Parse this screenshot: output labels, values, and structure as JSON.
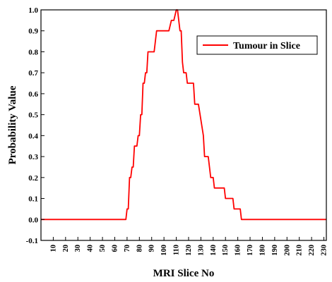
{
  "chart_data": {
    "type": "line",
    "xlabel": "MRI Slice No",
    "ylabel": "Probability Value",
    "xlim": [
      0,
      232
    ],
    "ylim": [
      -0.1,
      1.0
    ],
    "x_ticks": [
      10,
      20,
      30,
      40,
      50,
      60,
      70,
      80,
      90,
      100,
      110,
      120,
      130,
      140,
      150,
      160,
      170,
      180,
      190,
      200,
      210,
      220,
      230
    ],
    "y_ticks": [
      -0.1,
      0.0,
      0.1,
      0.2,
      0.3,
      0.4,
      0.5,
      0.6,
      0.7,
      0.8,
      0.9,
      1.0
    ],
    "y_tick_labels": [
      "-0.1",
      "0.0",
      "0.1",
      "0.2",
      "0.3",
      "0.4",
      "0.5",
      "0.6",
      "0.7",
      "0.8",
      "0.9",
      "1.0"
    ],
    "grid": false,
    "legend_position": "top-right",
    "series": [
      {
        "name": "Tumour in Slice",
        "color": "#ff0000",
        "points": [
          [
            0,
            0.0
          ],
          [
            69,
            0.0
          ],
          [
            70,
            0.05
          ],
          [
            71,
            0.05
          ],
          [
            72,
            0.2
          ],
          [
            73,
            0.2
          ],
          [
            74,
            0.25
          ],
          [
            75,
            0.25
          ],
          [
            76,
            0.35
          ],
          [
            78,
            0.35
          ],
          [
            79,
            0.4
          ],
          [
            80,
            0.4
          ],
          [
            81,
            0.5
          ],
          [
            82,
            0.5
          ],
          [
            83,
            0.65
          ],
          [
            84,
            0.65
          ],
          [
            85,
            0.7
          ],
          [
            86,
            0.7
          ],
          [
            87,
            0.8
          ],
          [
            92,
            0.8
          ],
          [
            94,
            0.9
          ],
          [
            104,
            0.9
          ],
          [
            106,
            0.95
          ],
          [
            108,
            0.95
          ],
          [
            110,
            1.0
          ],
          [
            111,
            1.0
          ],
          [
            113,
            0.9
          ],
          [
            114,
            0.9
          ],
          [
            115,
            0.75
          ],
          [
            116,
            0.7
          ],
          [
            118,
            0.7
          ],
          [
            119,
            0.65
          ],
          [
            124,
            0.65
          ],
          [
            125,
            0.55
          ],
          [
            128,
            0.55
          ],
          [
            132,
            0.4
          ],
          [
            133,
            0.3
          ],
          [
            136,
            0.3
          ],
          [
            138,
            0.2
          ],
          [
            140,
            0.2
          ],
          [
            141,
            0.15
          ],
          [
            149,
            0.15
          ],
          [
            150,
            0.1
          ],
          [
            156,
            0.1
          ],
          [
            157,
            0.05
          ],
          [
            162,
            0.05
          ],
          [
            163,
            0.0
          ],
          [
            232,
            0.0
          ]
        ]
      }
    ]
  }
}
